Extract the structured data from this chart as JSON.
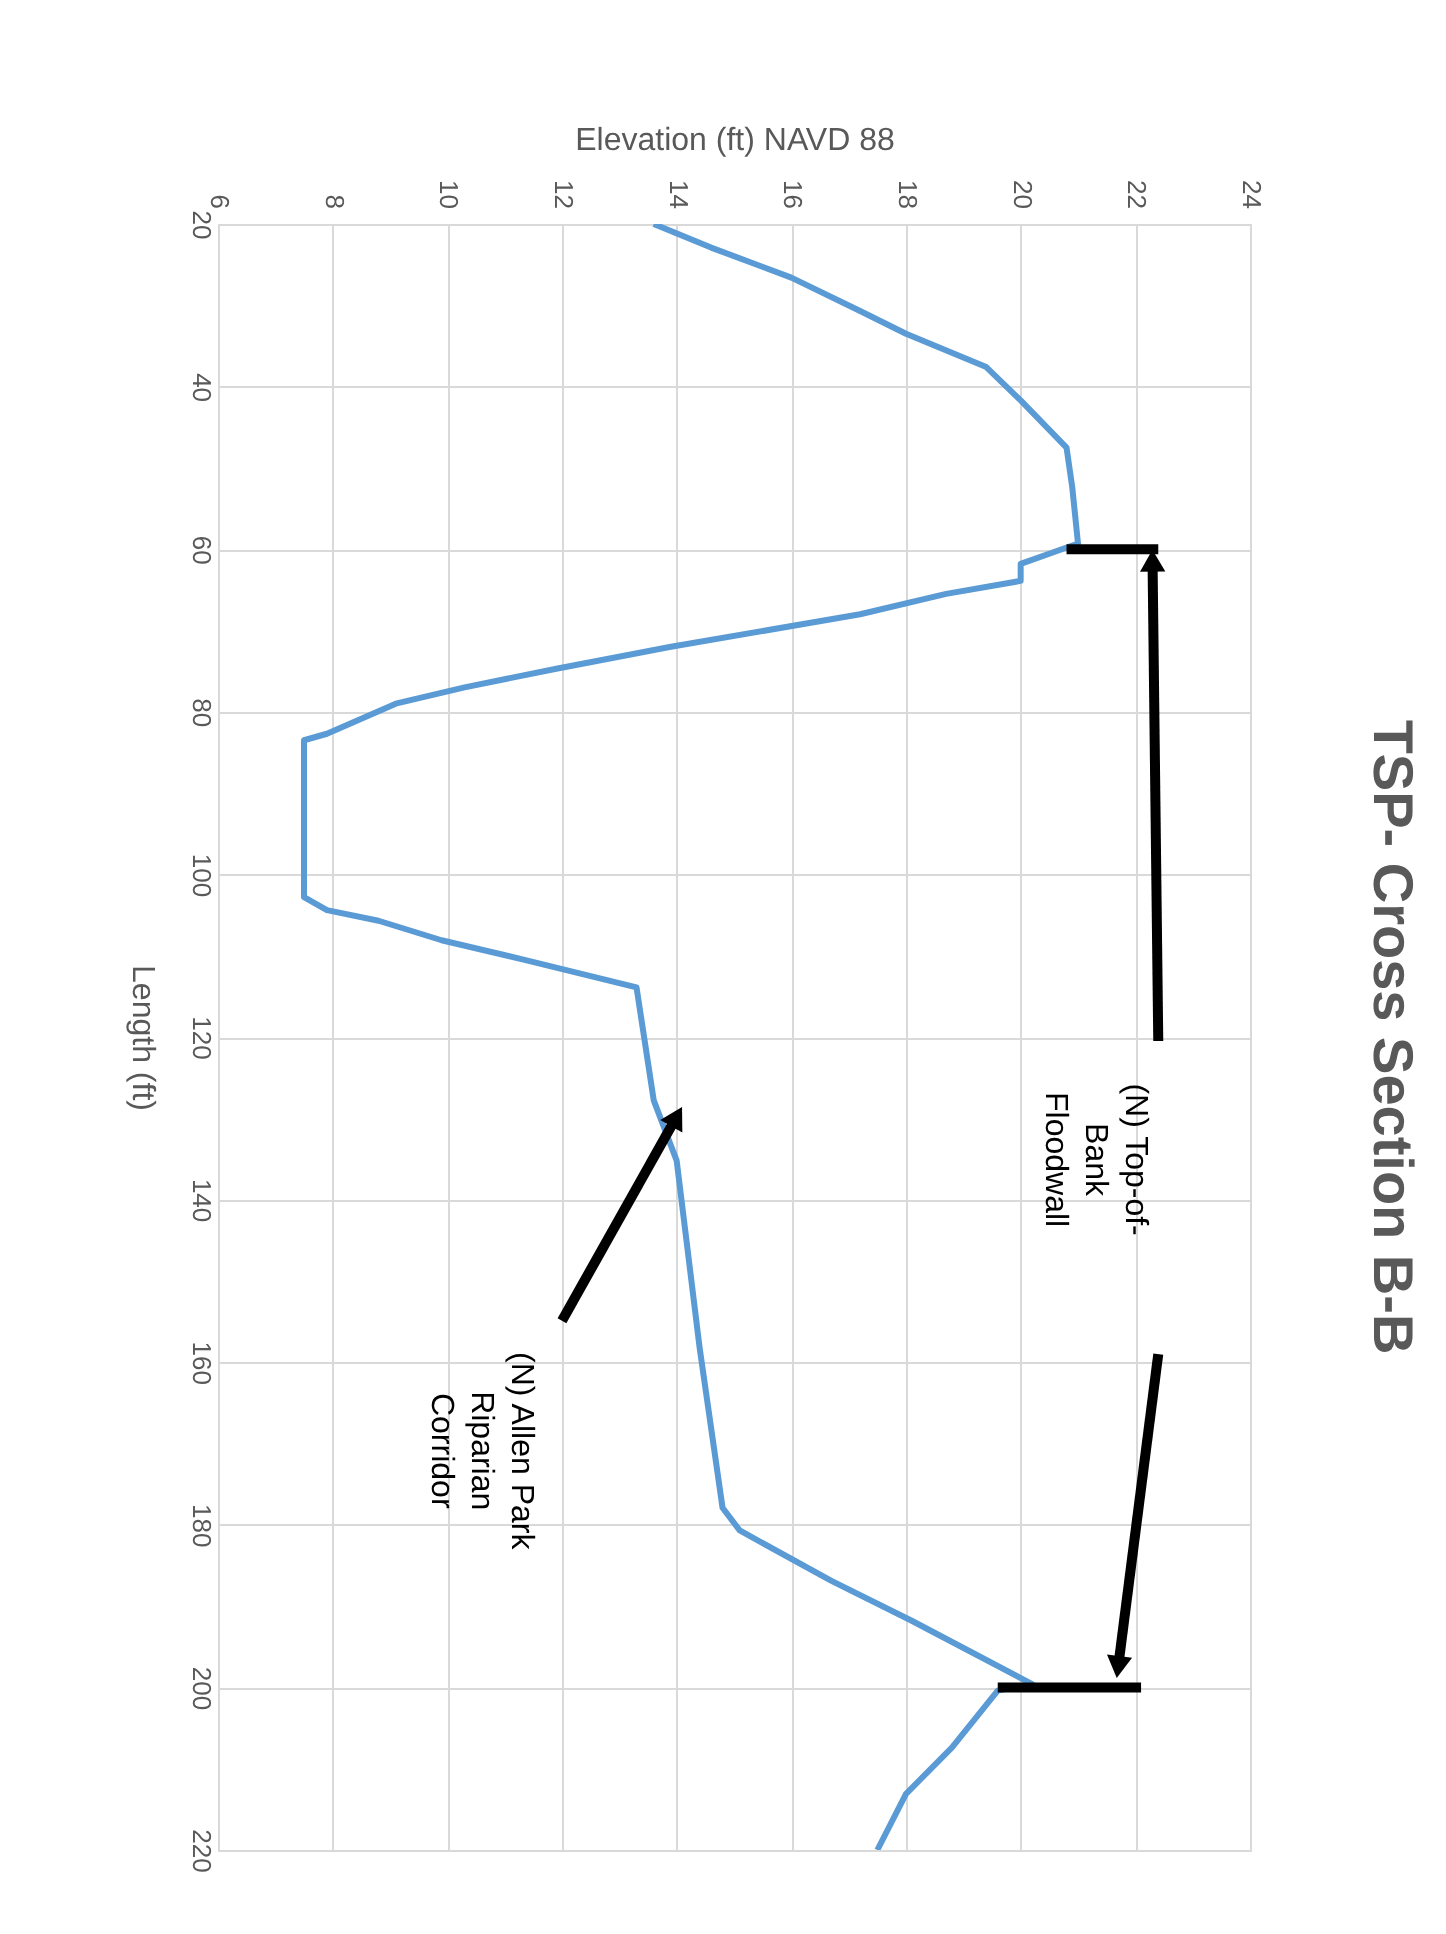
{
  "chart_data": {
    "type": "line",
    "title": "TSP- Cross Section B-B",
    "xlabel": "Elevation (ft) NAVD 88",
    "ylabel": "Length (ft)",
    "xlim": [
      6,
      24
    ],
    "xticks": [
      6,
      8,
      10,
      12,
      14,
      16,
      18,
      20,
      22,
      24
    ],
    "ylim": [
      220,
      20
    ],
    "yticks": [
      20,
      40,
      60,
      80,
      100,
      120,
      140,
      160,
      180,
      200,
      220
    ],
    "grid": true,
    "series": [
      {
        "color": "#5b9bd5",
        "values": [
          20,
          22.9,
          26.6,
          30.7,
          33.5,
          37.6,
          41.7,
          47.5,
          52.4,
          59.3,
          61.8,
          63.9,
          65.5,
          68,
          72,
          74.7,
          77,
          79,
          82.7,
          83.5,
          93.4,
          102.8,
          104.4,
          105.7,
          108.1,
          110.6,
          113.9,
          127.8,
          135.2,
          158.2,
          177.9,
          180.7,
          186.9,
          191.8,
          199.6,
          200.4,
          207.4,
          213.1,
          220
        ],
        "x": [
          13.6,
          14.6,
          16.0,
          17.2,
          18.0,
          19.4,
          20.0,
          20.8,
          20.9,
          21.0,
          20.0,
          20.0,
          18.7,
          17.2,
          13.9,
          11.9,
          10.3,
          9.1,
          7.9,
          7.5,
          7.5,
          7.5,
          7.9,
          8.8,
          9.9,
          11.4,
          13.3,
          13.6,
          14.0,
          14.4,
          14.8,
          15.1,
          16.7,
          18.1,
          20.2,
          19.6,
          18.8,
          18.0,
          17.5
        ]
      },
      {
        "color": "#000000",
        "values": [
          60,
          60
        ],
        "x": [
          20.8,
          22.4
        ]
      },
      {
        "color": "#000000",
        "values": [
          200,
          200
        ],
        "x": [
          19.6,
          22.1
        ]
      },
      {
        "color": "#000000",
        "marker": "triangle",
        "values": [
          120.5,
          61.4
        ],
        "x": [
          22.4,
          22.3
        ]
      },
      {
        "color": "#000000",
        "marker": "triangle",
        "values": [
          159,
          197.5
        ],
        "x": [
          22.4,
          21.7
        ]
      },
      {
        "color": "#000000",
        "marker": "triangle",
        "values": [
          154.9,
          129.8
        ],
        "x": [
          12.0,
          14.0
        ]
      }
    ],
    "annotations": [
      "(N) Top-of-\nBank\nFloodwall",
      "(N) Allen Park\nRiparian\nCorridor"
    ]
  }
}
